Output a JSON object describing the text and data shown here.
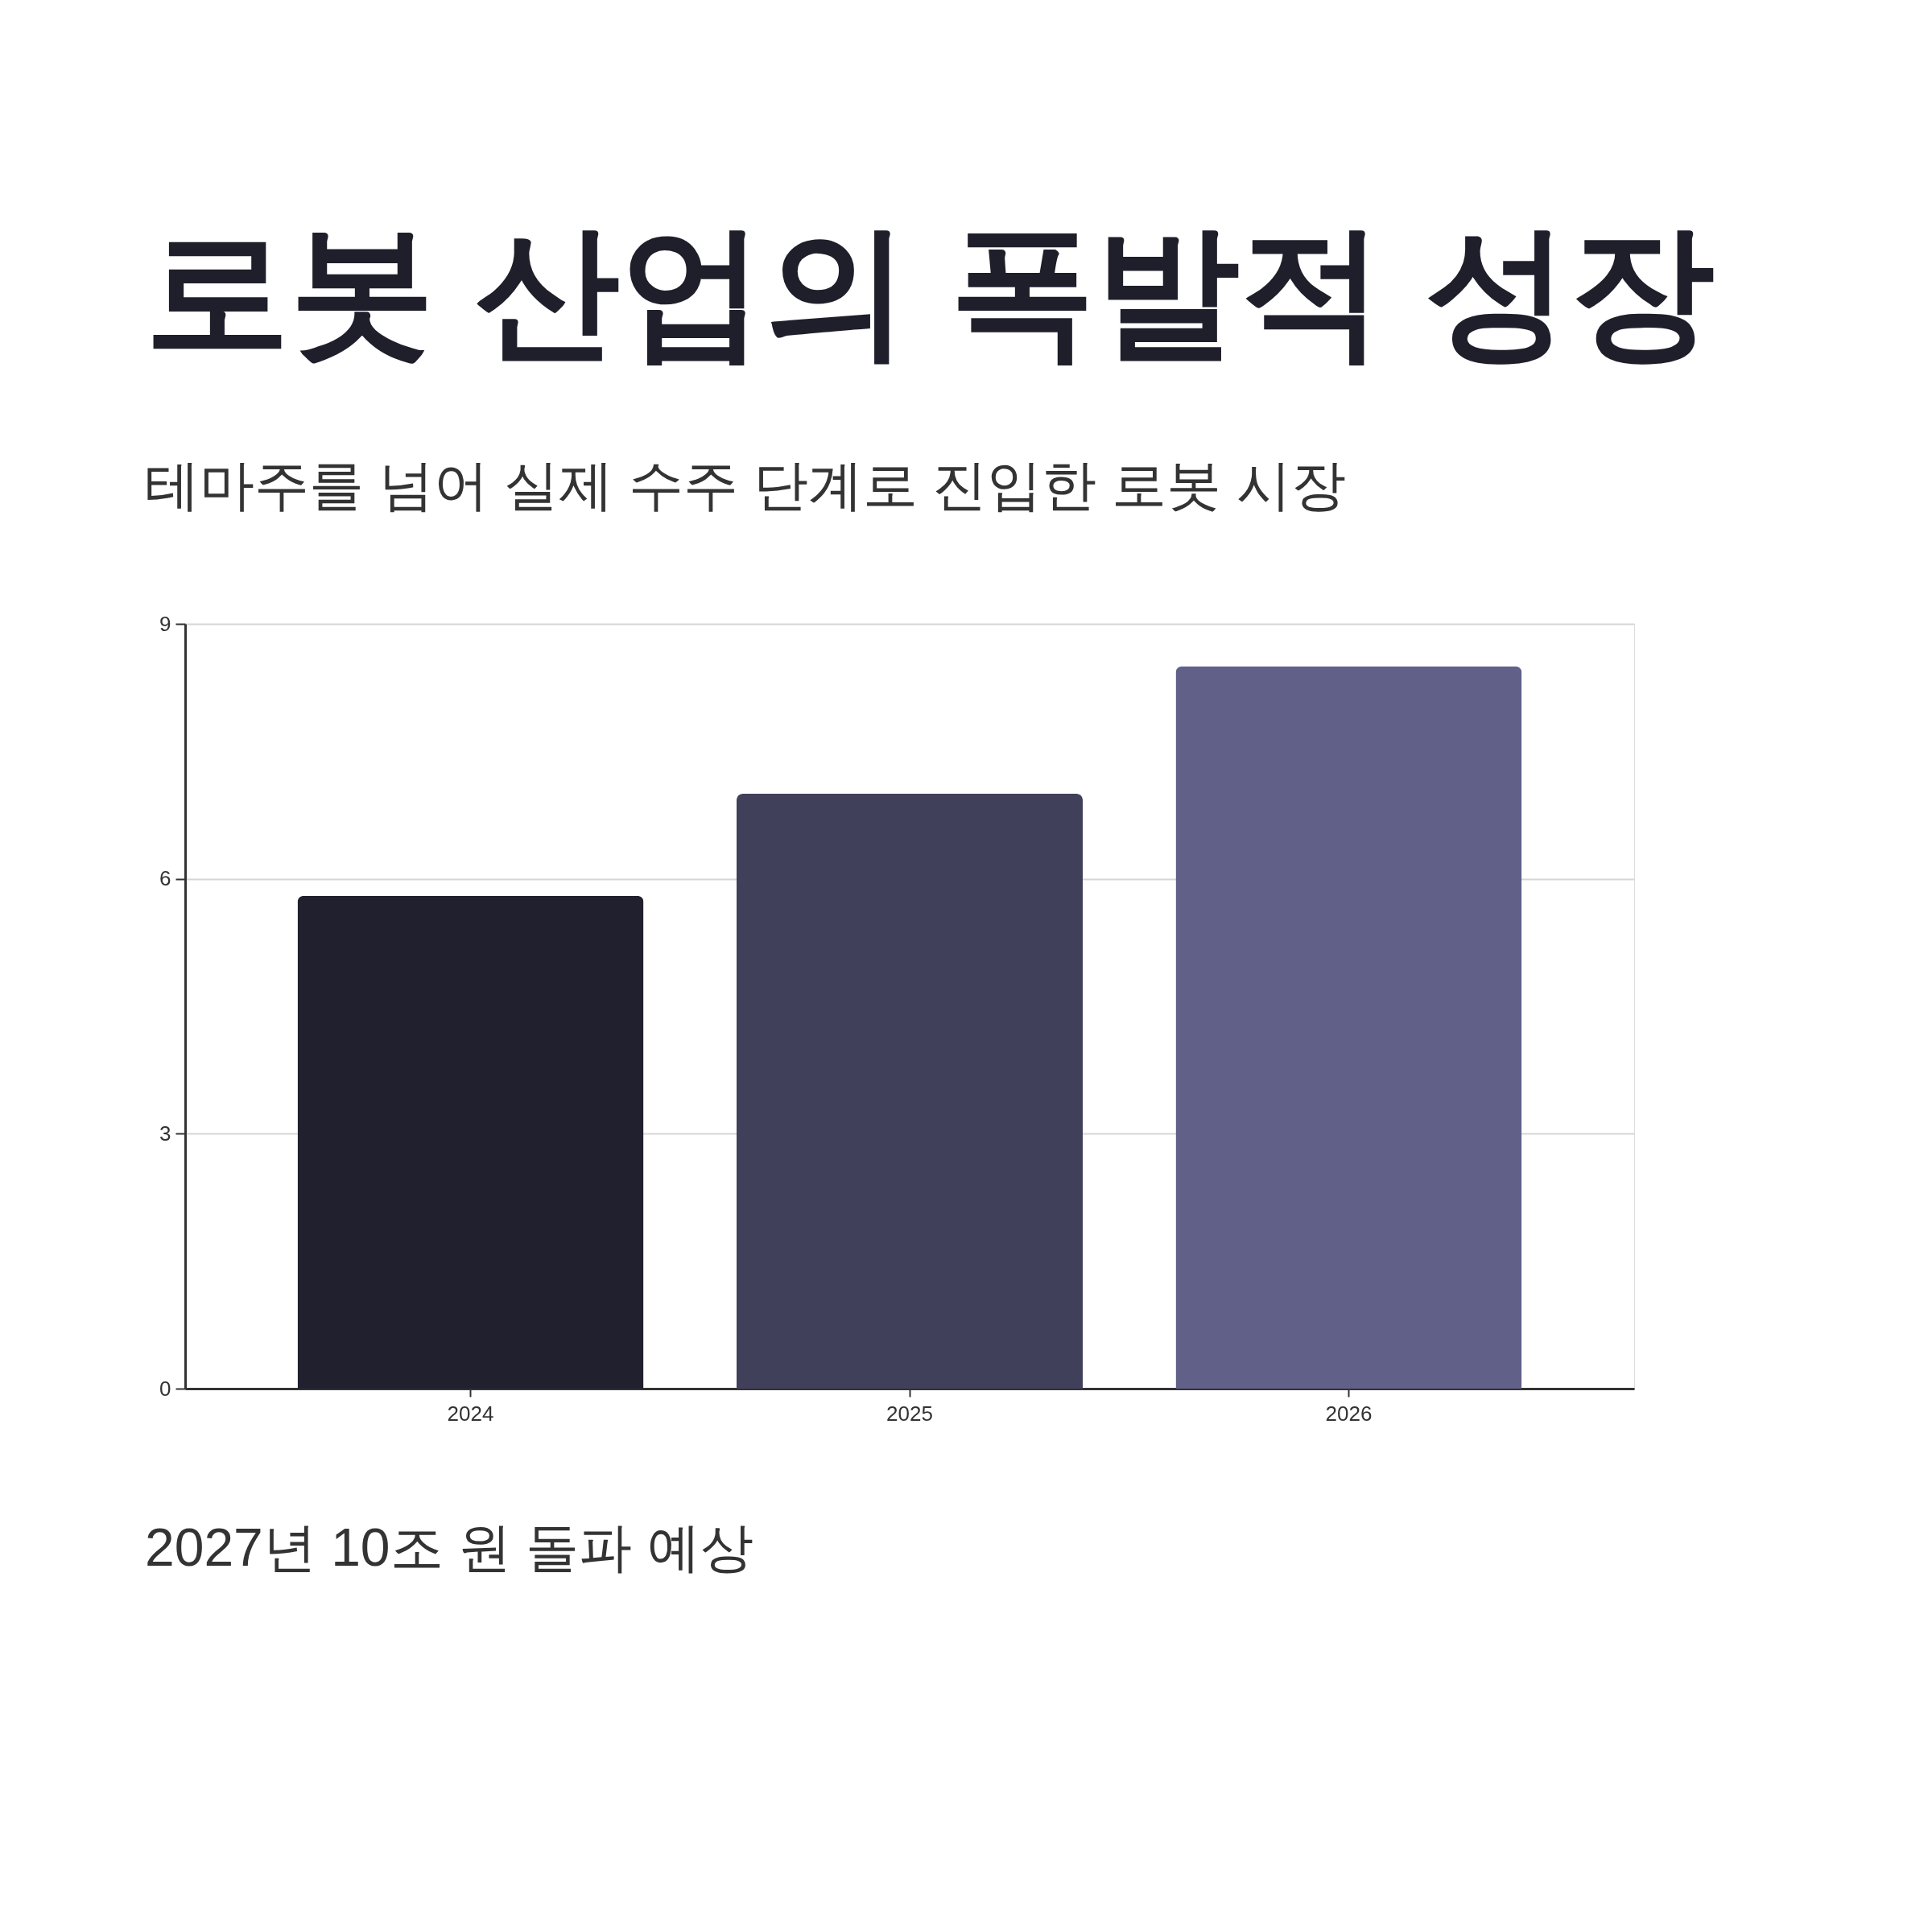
{
  "chart_data": {
    "type": "bar",
    "title": "로봇 산업의 폭발적 성장",
    "subtitle": "테마주를 넘어 실제 수주 단계로 진입한 로봇 시장",
    "categories": [
      "2024",
      "2025",
      "2026"
    ],
    "values": [
      5.8,
      7.0,
      8.5
    ],
    "colors": [
      "#20202e",
      "#40405a",
      "#616088"
    ],
    "ylim": [
      0,
      9
    ],
    "yticks": [
      0,
      3,
      6,
      9
    ],
    "grid": "y",
    "annotations": [
      "2027년 10조 원 돌파 예상"
    ]
  }
}
